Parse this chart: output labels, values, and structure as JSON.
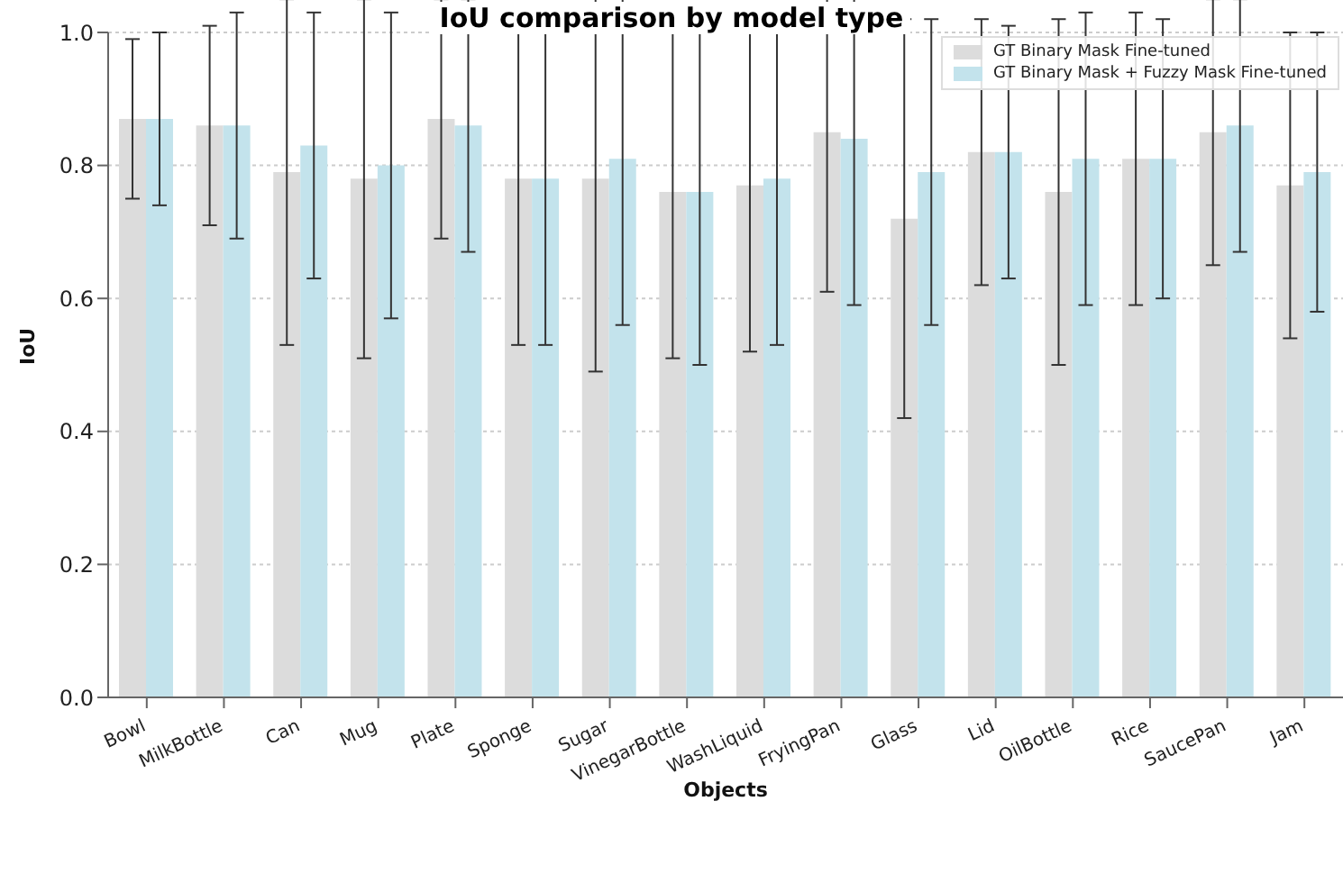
{
  "chart_data": {
    "type": "bar",
    "title": "IoU comparison by model type",
    "xlabel": "Objects",
    "ylabel": "IoU",
    "categories": [
      "Bowl",
      "MilkBottle",
      "Can",
      "Mug",
      "Plate",
      "Sponge",
      "Sugar",
      "VinegarBottle",
      "WashLiquid",
      "FryingPan",
      "Glass",
      "Lid",
      "OilBottle",
      "Rice",
      "SaucePan",
      "Jam"
    ],
    "series": [
      {
        "name": "GT Binary Mask Fine-tuned",
        "color": "#dcdcdc",
        "values": [
          0.87,
          0.86,
          0.79,
          0.78,
          0.87,
          0.78,
          0.78,
          0.76,
          0.77,
          0.85,
          0.72,
          0.82,
          0.76,
          0.81,
          0.85,
          0.77
        ],
        "errors": [
          0.12,
          0.15,
          0.26,
          0.27,
          0.18,
          0.25,
          0.29,
          0.25,
          0.25,
          0.24,
          0.3,
          0.2,
          0.26,
          0.22,
          0.2,
          0.23
        ]
      },
      {
        "name": "GT Binary Mask + Fuzzy Mask Fine-tuned",
        "color": "#c3e3ec",
        "values": [
          0.87,
          0.86,
          0.83,
          0.8,
          0.86,
          0.78,
          0.81,
          0.76,
          0.78,
          0.84,
          0.79,
          0.82,
          0.81,
          0.81,
          0.86,
          0.79
        ],
        "errors": [
          0.13,
          0.17,
          0.2,
          0.23,
          0.19,
          0.25,
          0.25,
          0.26,
          0.25,
          0.25,
          0.23,
          0.19,
          0.22,
          0.21,
          0.19,
          0.21
        ]
      }
    ],
    "ylim": [
      0,
      1
    ],
    "yticks": [
      {
        "value": 0,
        "label": "0.0"
      },
      0.2,
      0.4,
      0.6,
      0.8,
      {
        "value": 1,
        "label": "1.0"
      }
    ],
    "grid": "y",
    "legend": "top right"
  }
}
